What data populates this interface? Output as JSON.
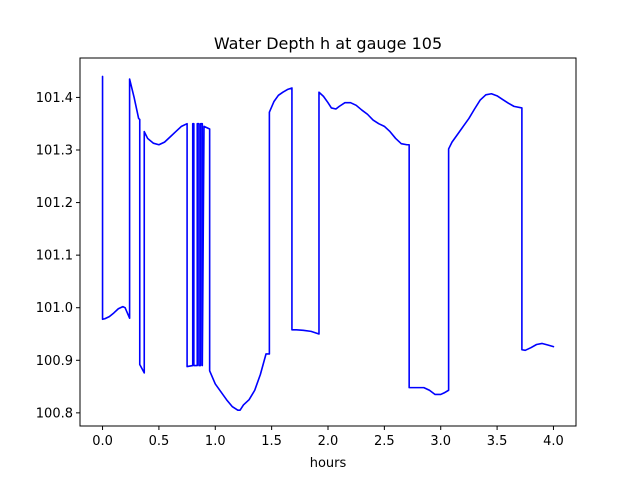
{
  "chart_data": {
    "type": "line",
    "title": "Water Depth h at gauge 105",
    "xlabel": "hours",
    "ylabel": "",
    "xlim": [
      -0.2,
      4.2
    ],
    "ylim": [
      100.775,
      101.475
    ],
    "grid": false,
    "legend": "none",
    "x_ticks": [
      {
        "value": 0.0,
        "label": "0.0"
      },
      {
        "value": 0.5,
        "label": "0.5"
      },
      {
        "value": 1.0,
        "label": "1.0"
      },
      {
        "value": 1.5,
        "label": "1.5"
      },
      {
        "value": 2.0,
        "label": "2.0"
      },
      {
        "value": 2.5,
        "label": "2.5"
      },
      {
        "value": 3.0,
        "label": "3.0"
      },
      {
        "value": 3.5,
        "label": "3.5"
      },
      {
        "value": 4.0,
        "label": "4.0"
      }
    ],
    "y_ticks": [
      {
        "value": 100.8,
        "label": "100.8"
      },
      {
        "value": 100.9,
        "label": "100.9"
      },
      {
        "value": 101.0,
        "label": "101.0"
      },
      {
        "value": 101.1,
        "label": "101.1"
      },
      {
        "value": 101.2,
        "label": "101.2"
      },
      {
        "value": 101.3,
        "label": "101.3"
      },
      {
        "value": 101.4,
        "label": "101.4"
      }
    ],
    "series": [
      {
        "color": "#0000ff",
        "x": [
          0.0,
          0.0,
          0.02,
          0.06,
          0.1,
          0.14,
          0.18,
          0.2,
          0.22,
          0.24,
          0.24,
          0.28,
          0.32,
          0.33,
          0.33,
          0.37,
          0.37,
          0.4,
          0.45,
          0.5,
          0.55,
          0.6,
          0.65,
          0.7,
          0.75,
          0.75,
          0.8,
          0.8,
          0.81,
          0.81,
          0.84,
          0.84,
          0.855,
          0.855,
          0.87,
          0.87,
          0.885,
          0.885,
          0.9,
          0.95,
          0.95,
          1.0,
          1.05,
          1.1,
          1.15,
          1.2,
          1.22,
          1.25,
          1.3,
          1.35,
          1.4,
          1.45,
          1.48,
          1.48,
          1.52,
          1.56,
          1.6,
          1.64,
          1.68,
          1.68,
          1.72,
          1.78,
          1.85,
          1.92,
          1.92,
          1.96,
          2.0,
          2.03,
          2.07,
          2.1,
          2.15,
          2.2,
          2.25,
          2.3,
          2.35,
          2.4,
          2.45,
          2.5,
          2.55,
          2.6,
          2.65,
          2.7,
          2.72,
          2.72,
          2.75,
          2.8,
          2.85,
          2.9,
          2.95,
          3.0,
          3.03,
          3.07,
          3.07,
          3.1,
          3.15,
          3.2,
          3.25,
          3.3,
          3.35,
          3.4,
          3.45,
          3.5,
          3.55,
          3.6,
          3.65,
          3.72,
          3.72,
          3.75,
          3.8,
          3.85,
          3.9,
          3.95,
          4.0
        ],
        "y": [
          101.44,
          100.978,
          100.979,
          100.983,
          100.99,
          100.998,
          101.002,
          101.0,
          100.99,
          100.98,
          101.435,
          101.4,
          101.36,
          101.358,
          100.892,
          100.876,
          101.335,
          101.322,
          101.313,
          101.31,
          101.315,
          101.325,
          101.335,
          101.345,
          101.35,
          100.888,
          100.89,
          101.35,
          101.35,
          100.89,
          100.89,
          101.35,
          101.35,
          100.89,
          100.89,
          101.35,
          101.35,
          100.89,
          101.345,
          101.34,
          100.88,
          100.855,
          100.84,
          100.825,
          100.812,
          100.805,
          100.805,
          100.815,
          100.825,
          100.843,
          100.873,
          100.912,
          100.912,
          101.372,
          101.392,
          101.404,
          101.41,
          101.415,
          101.418,
          100.958,
          100.958,
          100.957,
          100.955,
          100.95,
          101.41,
          101.402,
          101.39,
          101.38,
          101.378,
          101.383,
          101.39,
          101.39,
          101.385,
          101.376,
          101.368,
          101.357,
          101.35,
          101.345,
          101.335,
          101.322,
          101.312,
          101.31,
          101.31,
          100.848,
          100.848,
          100.848,
          100.848,
          100.843,
          100.835,
          100.835,
          100.838,
          100.843,
          101.302,
          101.315,
          101.33,
          101.345,
          101.36,
          101.378,
          101.395,
          101.405,
          101.407,
          101.403,
          101.396,
          101.389,
          101.383,
          101.38,
          100.92,
          100.919,
          100.924,
          100.93,
          100.932,
          100.929,
          100.926
        ]
      }
    ]
  }
}
